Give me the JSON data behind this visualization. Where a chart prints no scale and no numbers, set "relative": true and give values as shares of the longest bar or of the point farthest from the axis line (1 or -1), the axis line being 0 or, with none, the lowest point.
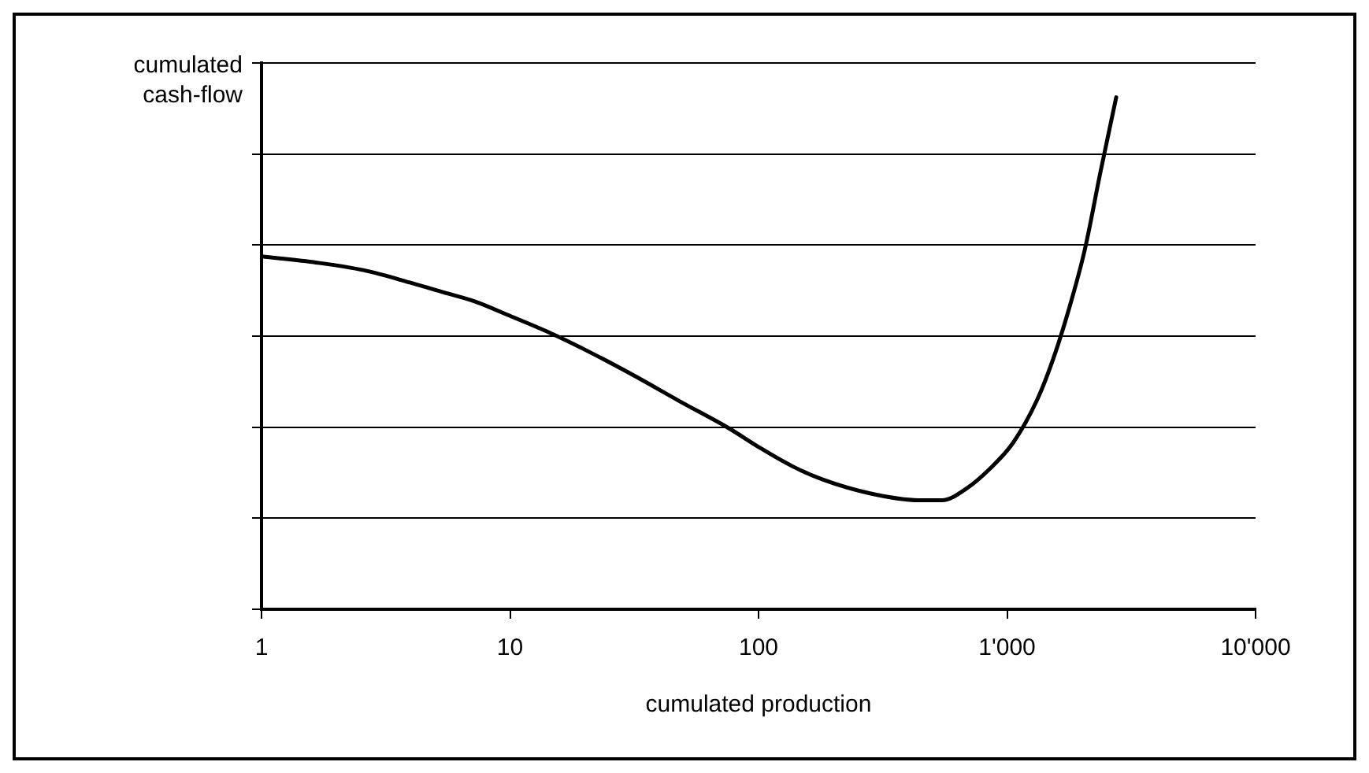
{
  "chart_data": {
    "type": "line",
    "relative": true,
    "xlabel": "cumulated production",
    "ylabel": "cumulated cash-flow",
    "log": "x",
    "xlim": [
      1,
      10000
    ],
    "xticks": [
      1,
      10,
      100,
      {
        "value": 1000,
        "label": "1'000"
      },
      {
        "value": 10000,
        "label": "10'000"
      }
    ],
    "grid": "y",
    "legend": false,
    "marker": "none",
    "line_style": "solid",
    "series": [
      {
        "color": "#000000",
        "x": [
          1,
          1.67,
          2.59,
          4.03,
          5.4,
          7.24,
          10,
          14,
          20.2,
          31.4,
          48.7,
          75.7,
          100,
          136,
          182,
          283,
          440,
          548,
          683,
          851,
          1060,
          1321,
          1531,
          1771,
          2052,
          2376,
          2750
        ],
        "values": [
          0.689,
          0.677,
          0.662,
          0.637,
          0.619,
          0.601,
          0.573,
          0.543,
          0.506,
          0.457,
          0.405,
          0.354,
          0.317,
          0.28,
          0.253,
          0.226,
          0.213,
          0.213,
          0.235,
          0.274,
          0.326,
          0.409,
          0.488,
          0.585,
          0.701,
          0.854,
          1.0
        ]
      }
    ]
  }
}
